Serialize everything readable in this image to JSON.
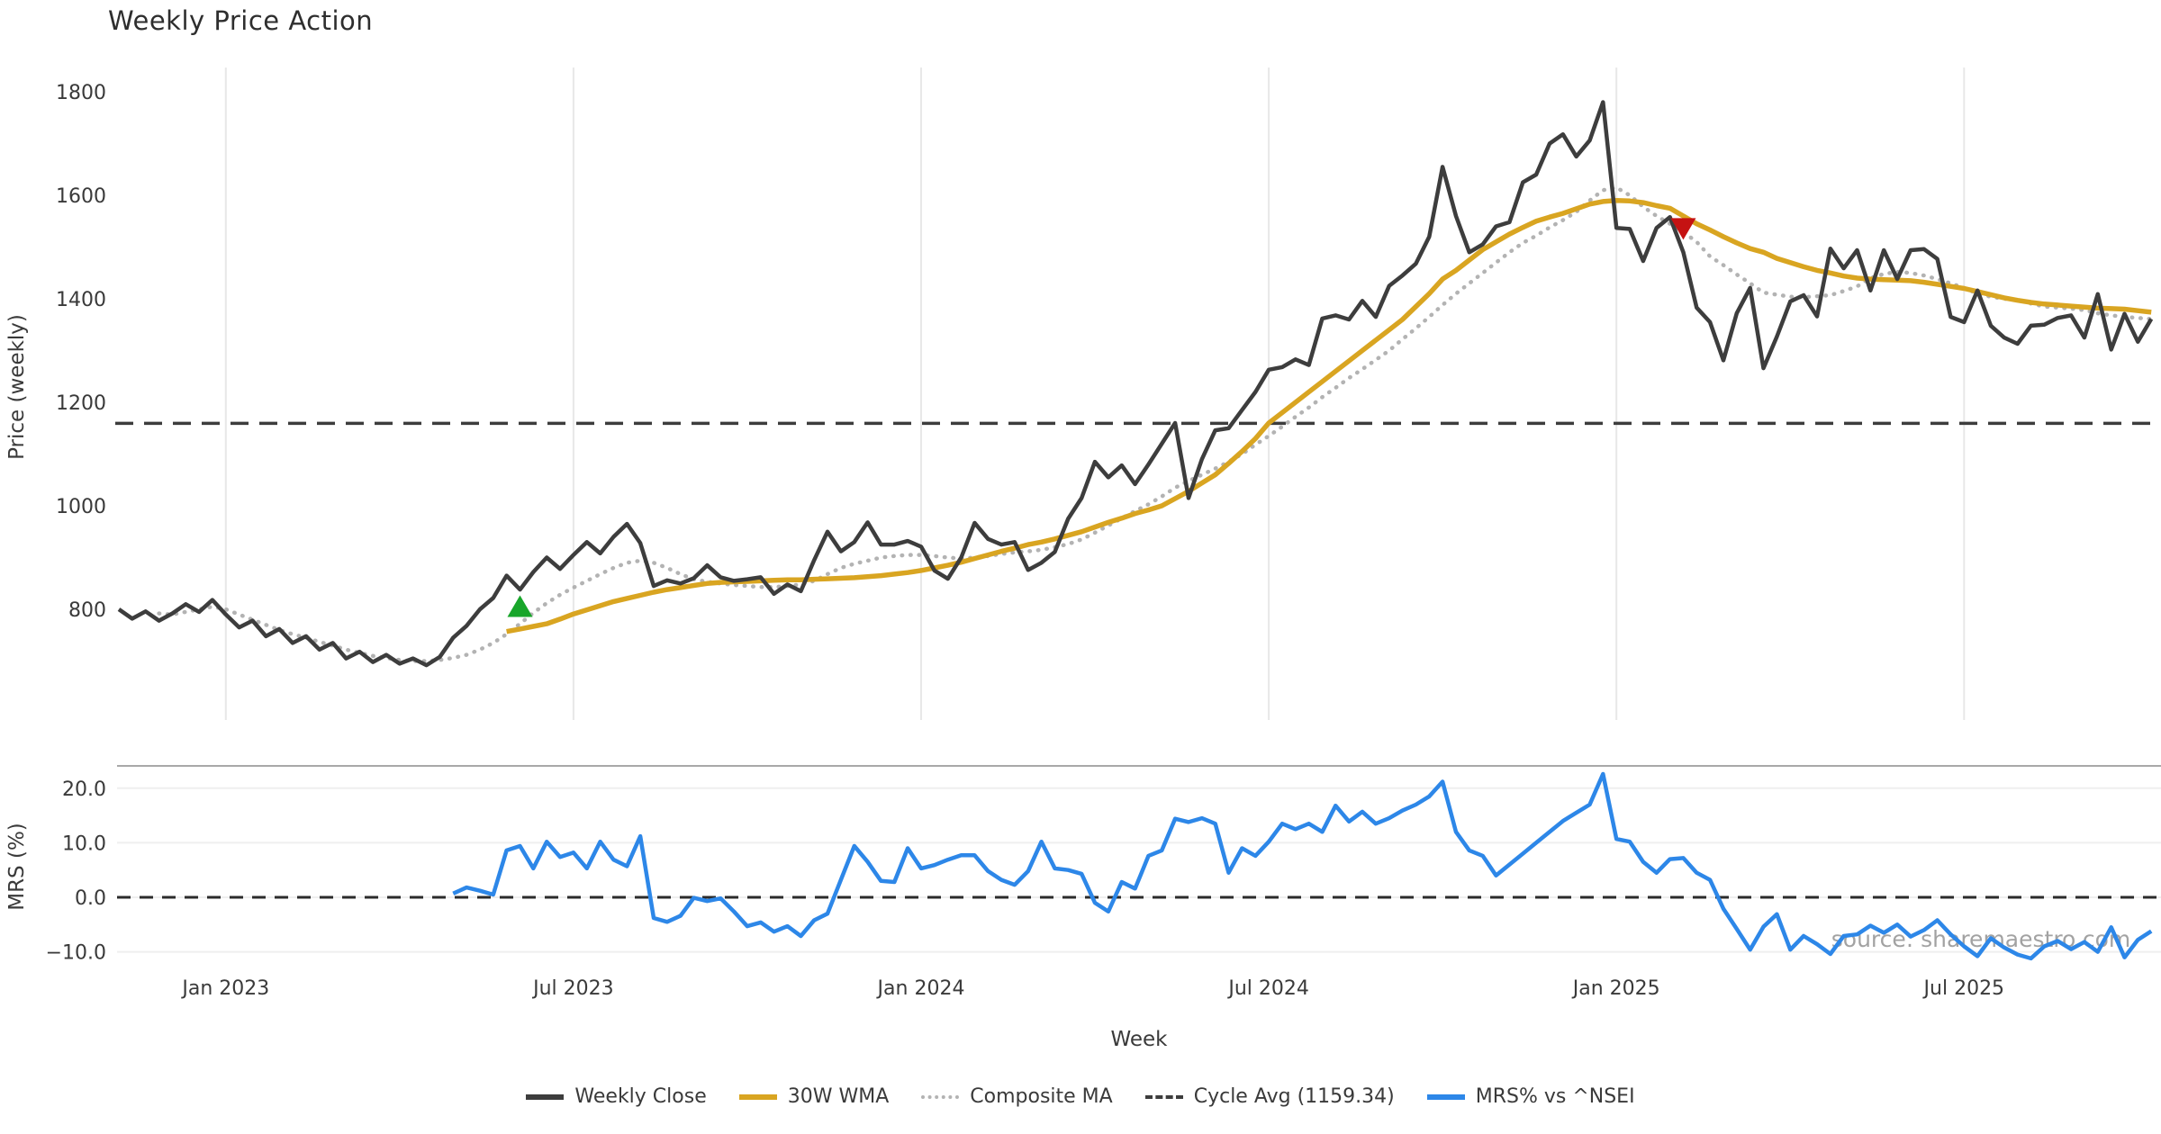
{
  "title": "Weekly Price Action",
  "watermark": "source: sharemaestro.com",
  "colors": {
    "weekly_close": "#3d3d3d",
    "wma_30w": "#d9a521",
    "composite_ma": "#b3b3b3",
    "cycle_avg": "#3d3d3d",
    "mrs": "#2d87e8",
    "buy_marker": "#18a62a",
    "sell_marker": "#c51212",
    "grid": "#e8e8e8",
    "text": "#3a3a3a"
  },
  "legend": {
    "items": [
      {
        "label": "Weekly Close",
        "color": "#3d3d3d",
        "style": "solid"
      },
      {
        "label": "30W WMA",
        "color": "#d9a521",
        "style": "solid"
      },
      {
        "label": "Composite MA",
        "color": "#b3b3b3",
        "style": "dotted"
      },
      {
        "label": "Cycle Avg (1159.34)",
        "color": "#3d3d3d",
        "style": "dashed"
      },
      {
        "label": "MRS% vs ^NSEI",
        "color": "#2d87e8",
        "style": "solid"
      }
    ]
  },
  "chart_data": {
    "type": "line",
    "x_unit": "week_index",
    "weeks_total": 153,
    "x_range_note": "weekly data, approx Nov 2022 to Oct 2025",
    "xlabel": "Week",
    "x_ticks": [
      {
        "label": "Jan 2023",
        "week": 8
      },
      {
        "label": "Jul 2023",
        "week": 34
      },
      {
        "label": "Jan 2024",
        "week": 60
      },
      {
        "label": "Jul 2024",
        "week": 86
      },
      {
        "label": "Jan 2025",
        "week": 112
      },
      {
        "label": "Jul 2025",
        "week": 138
      }
    ],
    "panels": [
      {
        "name": "price",
        "ylabel": "Price (weekly)",
        "ylim": [
          590,
          1870
        ],
        "grid": "vertical-only",
        "yticks": [
          {
            "value": 800,
            "label": "800"
          },
          {
            "value": 1000,
            "label": "1000"
          },
          {
            "value": 1200,
            "label": "1200"
          },
          {
            "value": 1400,
            "label": "1400"
          },
          {
            "value": 1600,
            "label": "1600"
          },
          {
            "value": 1800,
            "label": "1800"
          }
        ],
        "series": [
          {
            "name": "Weekly Close",
            "type": "line",
            "style": "solid",
            "color": "#3d3d3d",
            "width": 4.5,
            "start_week": 0,
            "values": [
              800,
              782,
              796,
              778,
              792,
              810,
              795,
              818,
              790,
              765,
              778,
              748,
              762,
              735,
              748,
              722,
              735,
              705,
              718,
              698,
              712,
              695,
              705,
              692,
              708,
              745,
              768,
              800,
              822,
              865,
              838,
              872,
              900,
              878,
              905,
              930,
              908,
              940,
              965,
              928,
              845,
              856,
              850,
              860,
              885,
              862,
              855,
              858,
              862,
              830,
              848,
              835,
              895,
              950,
              912,
              930,
              968,
              925,
              925,
              932,
              921,
              875,
              859,
              900,
              967,
              936,
              925,
              930,
              876,
              890,
              911,
              975,
              1015,
              1085,
              1055,
              1078,
              1042,
              1080,
              1120,
              1160,
              1015,
              1090,
              1146,
              1150,
              1185,
              1220,
              1263,
              1268,
              1283,
              1272,
              1362,
              1368,
              1360,
              1396,
              1365,
              1425,
              1445,
              1468,
              1520,
              1655,
              1560,
              1490,
              1505,
              1540,
              1548,
              1625,
              1640,
              1700,
              1718,
              1675,
              1706,
              1780,
              1537,
              1535,
              1473,
              1537,
              1558,
              1490,
              1383,
              1355,
              1281,
              1372,
              1421,
              1266,
              1327,
              1395,
              1407,
              1366,
              1497,
              1459,
              1494,
              1416,
              1494,
              1438,
              1494,
              1496,
              1477,
              1365,
              1355,
              1416,
              1348,
              1325,
              1313,
              1348,
              1350,
              1363,
              1368,
              1325,
              1409,
              1302,
              1371,
              1317,
              1361
            ]
          },
          {
            "name": "30W WMA",
            "type": "line",
            "style": "solid",
            "color": "#d9a521",
            "width": 5.5,
            "start_week": 29,
            "values": [
              757,
              762,
              767,
              772,
              781,
              791,
              799,
              807,
              815,
              821,
              827,
              833,
              838,
              842,
              846,
              850,
              852,
              853,
              854,
              855,
              856,
              857,
              857,
              858,
              859,
              860,
              861,
              863,
              865,
              868,
              871,
              875,
              880,
              885,
              891,
              898,
              905,
              912,
              918,
              925,
              930,
              936,
              943,
              950,
              959,
              968,
              976,
              985,
              992,
              1000,
              1014,
              1028,
              1044,
              1060,
              1082,
              1105,
              1130,
              1160,
              1180,
              1200,
              1220,
              1240,
              1260,
              1280,
              1300,
              1320,
              1340,
              1360,
              1385,
              1410,
              1438,
              1455,
              1475,
              1495,
              1510,
              1525,
              1538,
              1550,
              1558,
              1565,
              1574,
              1583,
              1588,
              1590,
              1589,
              1586,
              1580,
              1575,
              1560,
              1545,
              1533,
              1520,
              1508,
              1497,
              1490,
              1478,
              1470,
              1462,
              1455,
              1450,
              1444,
              1440,
              1438,
              1437,
              1436,
              1435,
              1432,
              1428,
              1424,
              1420,
              1414,
              1408,
              1402,
              1397,
              1393,
              1390,
              1388,
              1386,
              1384,
              1382,
              1381,
              1380,
              1377,
              1374
            ]
          },
          {
            "name": "Composite MA",
            "type": "line",
            "style": "dotted",
            "color": "#b3b3b3",
            "width": 4.5,
            "start_week": 3,
            "values": [
              792,
              790,
              795,
              800,
              805,
              800,
              790,
              780,
              770,
              760,
              752,
              745,
              737,
              730,
              722,
              716,
              710,
              706,
              702,
              700,
              700,
              702,
              706,
              712,
              722,
              735,
              752,
              772,
              793,
              812,
              828,
              842,
              855,
              868,
              880,
              890,
              894,
              890,
              880,
              868,
              858,
              853,
              850,
              847,
              845,
              843,
              843,
              845,
              848,
              855,
              868,
              880,
              888,
              894,
              900,
              903,
              905,
              905,
              903,
              900,
              898,
              900,
              903,
              907,
              910,
              912,
              915,
              920,
              926,
              935,
              948,
              962,
              976,
              990,
              1003,
              1018,
              1035,
              1048,
              1060,
              1072,
              1085,
              1100,
              1118,
              1135,
              1153,
              1172,
              1190,
              1210,
              1228,
              1247,
              1264,
              1282,
              1300,
              1322,
              1343,
              1365,
              1388,
              1410,
              1430,
              1450,
              1470,
              1490,
              1508,
              1522,
              1538,
              1552,
              1568,
              1590,
              1610,
              1615,
              1600,
              1578,
              1560,
              1545,
              1529,
              1510,
              1482,
              1465,
              1447,
              1430,
              1412,
              1408,
              1404,
              1403,
              1405,
              1407,
              1415,
              1424,
              1440,
              1448,
              1452,
              1450,
              1445,
              1438,
              1430,
              1421,
              1410,
              1404,
              1400,
              1398,
              1391,
              1385,
              1383,
              1381,
              1378,
              1372,
              1368,
              1365,
              1363,
              1361
            ]
          },
          {
            "name": "Cycle Avg (1159.34)",
            "type": "hline",
            "style": "dashed",
            "color": "#3d3d3d",
            "width": 3.5,
            "value": 1159.34
          }
        ],
        "markers": [
          {
            "name": "buy-signal",
            "shape": "triangle-up",
            "color": "#18a62a",
            "week": 30,
            "value": 806
          },
          {
            "name": "sell-signal",
            "shape": "triangle-down",
            "color": "#c51212",
            "week": 117,
            "value": 1535
          }
        ]
      },
      {
        "name": "mrs",
        "ylabel": "MRS (%)",
        "ylim": [
          -12.9,
          24.1
        ],
        "grid": "horizontal-only",
        "yticks": [
          {
            "value": 20,
            "label": "20.0"
          },
          {
            "value": 10,
            "label": "10.0"
          },
          {
            "value": 0,
            "label": "0.0"
          },
          {
            "value": -10,
            "label": "−10.0"
          }
        ],
        "zero_line": {
          "style": "dashed",
          "color": "#2b2b2b",
          "value": 0,
          "width": 3
        },
        "series": [
          {
            "name": "MRS% vs ^NSEI",
            "type": "line",
            "style": "solid",
            "color": "#2d87e8",
            "width": 4.5,
            "start_week": 25,
            "values": [
              0.7,
              1.8,
              1.2,
              0.5,
              8.6,
              9.4,
              5.3,
              10.2,
              7.4,
              8.2,
              5.3,
              10.2,
              6.9,
              5.7,
              11.2,
              -3.8,
              -4.5,
              -3.4,
              -0.1,
              -0.7,
              -0.2,
              -2.6,
              -5.3,
              -4.6,
              -6.3,
              -5.3,
              -7.1,
              -4.2,
              -3.0,
              3.2,
              9.4,
              6.5,
              3.0,
              2.8,
              9.0,
              5.3,
              5.9,
              6.9,
              7.7,
              7.7,
              4.8,
              3.2,
              2.3,
              4.8,
              10.2,
              5.3,
              5.0,
              4.3,
              -1.0,
              -2.6,
              2.8,
              1.6,
              7.6,
              8.6,
              14.4,
              13.8,
              14.5,
              13.5,
              4.5,
              9.0,
              7.6,
              10.2,
              13.5,
              12.5,
              13.5,
              12.0,
              16.8,
              13.9,
              15.7,
              13.5,
              14.5,
              15.9,
              17.0,
              18.5,
              21.2,
              12.0,
              8.6,
              7.6,
              4.0,
              6.0,
              8.0,
              10.0,
              12.0,
              14.0,
              15.5,
              17.0,
              22.6,
              10.7,
              10.2,
              6.5,
              4.5,
              7.0,
              7.2,
              4.5,
              3.2,
              -2.1,
              -5.8,
              -9.6,
              -5.4,
              -3.1,
              -9.6,
              -7.1,
              -8.6,
              -10.4,
              -7.1,
              -6.8,
              -5.2,
              -6.5,
              -5.0,
              -7.2,
              -6.0,
              -4.2,
              -6.8,
              -9.0,
              -10.8,
              -7.5,
              -9.2,
              -10.5,
              -11.2,
              -9.0,
              -8.0,
              -9.5,
              -8.2,
              -10.0,
              -5.5,
              -11.0,
              -7.8,
              -6.2
            ]
          }
        ]
      }
    ]
  }
}
